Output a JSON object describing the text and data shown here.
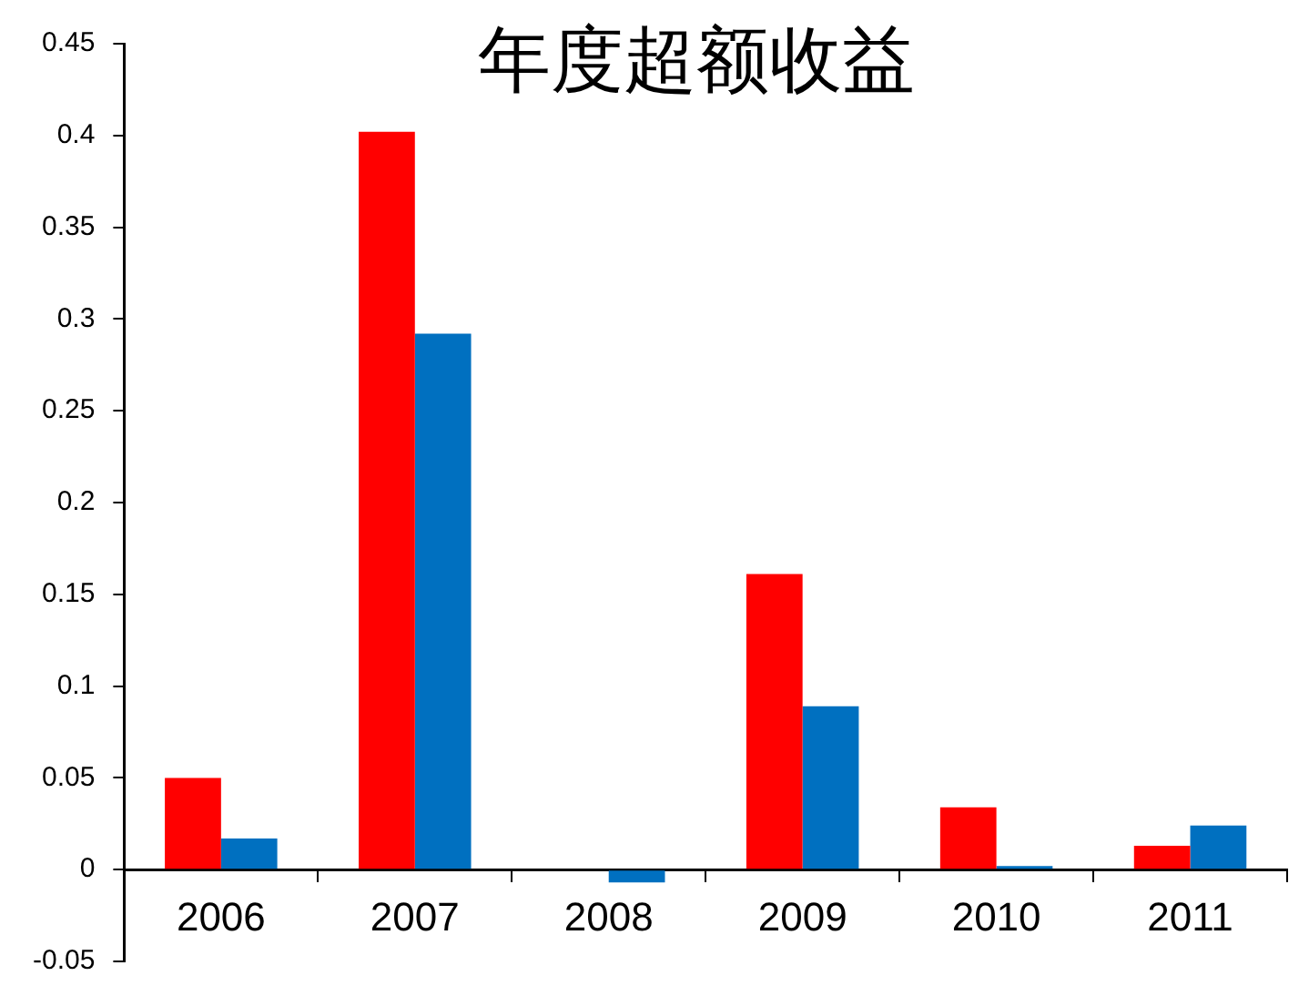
{
  "chart_data": {
    "type": "bar",
    "title": "年度超额收益",
    "categories": [
      "2006",
      "2007",
      "2008",
      "2009",
      "2010",
      "2011"
    ],
    "series": [
      {
        "color": "#ff0000",
        "values": [
          0.05,
          0.402,
          0,
          0.161,
          0.034,
          0.013
        ]
      },
      {
        "color": "#0070c0",
        "values": [
          0.017,
          0.292,
          -0.007,
          0.089,
          0.002,
          0.024
        ]
      }
    ],
    "ylim": [
      -0.05,
      0.45
    ],
    "yticks": [
      -0.05,
      0,
      0.05,
      0.1,
      0.15,
      0.2,
      0.25,
      0.3,
      0.35,
      0.4,
      0.45
    ],
    "grid": false,
    "legend": false
  }
}
